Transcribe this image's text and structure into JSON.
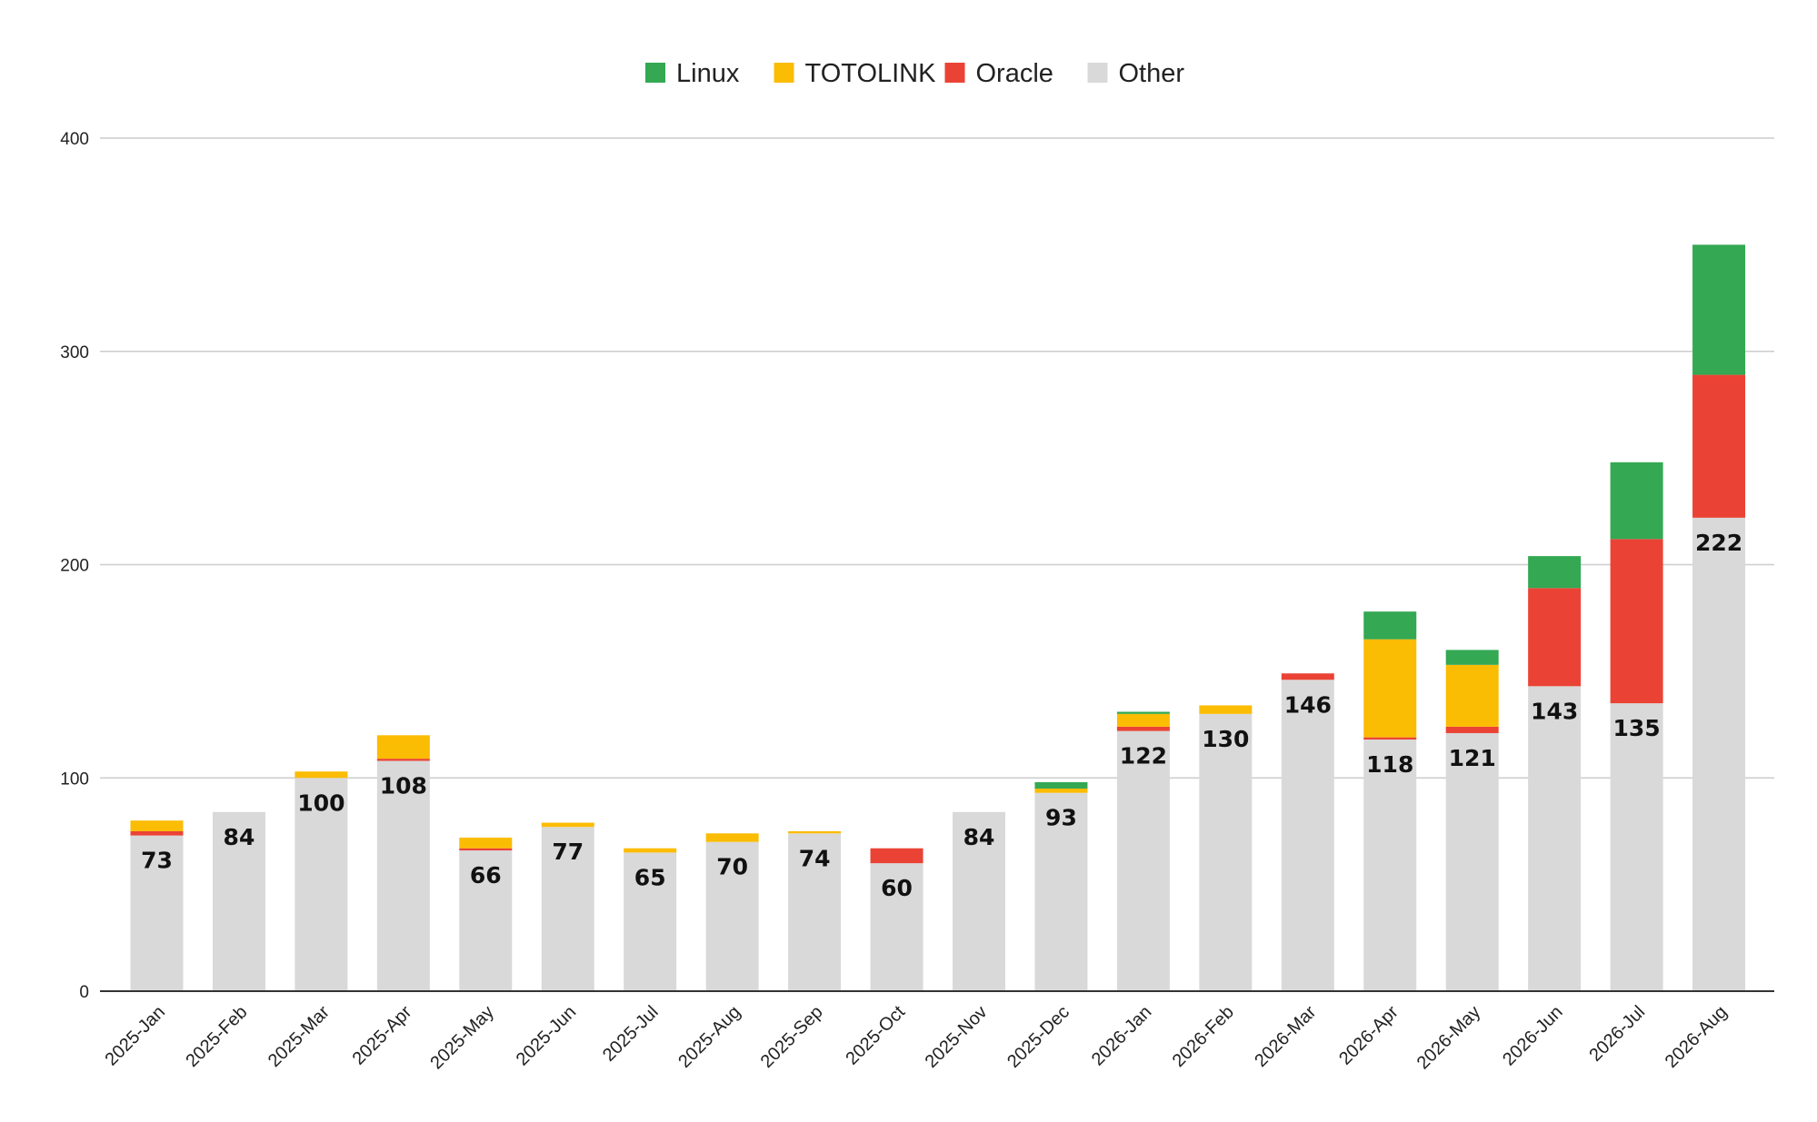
{
  "chart_data": {
    "type": "bar",
    "stacked": true,
    "title": "",
    "xlabel": "",
    "ylabel": "",
    "ylim": [
      0,
      400
    ],
    "yticks": [
      0,
      100,
      200,
      300,
      400
    ],
    "grid": true,
    "legend_position": "top",
    "categories": [
      "2025-Jan",
      "2025-Feb",
      "2025-Mar",
      "2025-Apr",
      "2025-May",
      "2025-Jun",
      "2025-Jul",
      "2025-Aug",
      "2025-Sep",
      "2025-Oct",
      "2025-Nov",
      "2025-Dec",
      "2026-Jan",
      "2026-Feb",
      "2026-Mar",
      "2026-Apr",
      "2026-May",
      "2026-Jun",
      "2026-Jul",
      "2026-Aug"
    ],
    "series": [
      {
        "name": "Other",
        "color": "#d9d9d9",
        "values": [
          73,
          84,
          100,
          108,
          66,
          77,
          65,
          70,
          74,
          60,
          84,
          93,
          122,
          130,
          146,
          118,
          121,
          143,
          135,
          222
        ],
        "show_labels": true
      },
      {
        "name": "Oracle",
        "color": "#ea4335",
        "values": [
          2,
          0,
          0,
          1,
          1,
          0,
          0,
          0,
          0,
          7,
          0,
          0,
          2,
          0,
          3,
          1,
          3,
          46,
          77,
          67
        ],
        "show_labels": false
      },
      {
        "name": "TOTOLINK",
        "color": "#fbbc04",
        "values": [
          5,
          0,
          3,
          11,
          5,
          2,
          2,
          4,
          1,
          0,
          0,
          2,
          6,
          4,
          0,
          46,
          29,
          0,
          0,
          0
        ],
        "show_labels": false
      },
      {
        "name": "Linux",
        "color": "#34a853",
        "values": [
          0,
          0,
          0,
          0,
          0,
          0,
          0,
          0,
          0,
          0,
          0,
          3,
          1,
          0,
          0,
          13,
          7,
          15,
          36,
          61
        ],
        "show_labels": false
      }
    ],
    "legend_order": [
      "Linux",
      "TOTOLINK",
      "Oracle",
      "Other"
    ]
  }
}
